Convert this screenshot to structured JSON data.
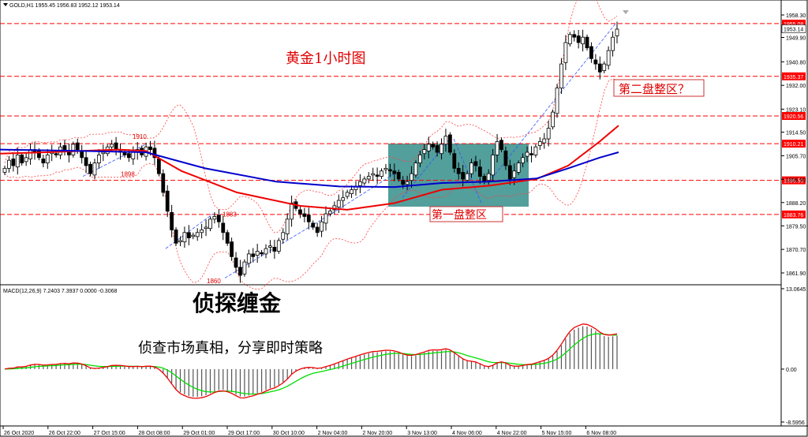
{
  "window": {
    "symbol_line": "GOLD,H1  1955.45 1956.83 1952.12 1953.14"
  },
  "overlay": {
    "title_cn": "黄金1小时图",
    "zone1_label": "第一盘整区",
    "zone2_label": "第二盘整区？",
    "brand_big": "侦探缠金",
    "brand_sub": "侦查市场真相，分享即时策略"
  },
  "chart_data": [
    {
      "type": "candlestick",
      "symbol": "GOLD",
      "timeframe": "H1",
      "ohlc_last": {
        "open": 1955.45,
        "high": 1956.83,
        "low": 1952.12,
        "close": 1953.14
      },
      "ylim": [
        1858,
        1963
      ],
      "yticks": [
        1958.3,
        1949.9,
        1940.8,
        1932.0,
        1923.1,
        1914.5,
        1905.7,
        1896.9,
        1888.2,
        1879.5,
        1870.7,
        1861.9
      ],
      "xticks": [
        "26 Oct 2020",
        "26 Oct 22:00",
        "27 Oct 15:00",
        "28 Oct 08:00",
        "29 Oct 01:00",
        "29 Oct 17:00",
        "30 Oct 10:00",
        "2 Nov 04:00",
        "2 Nov 20:00",
        "3 Nov 13:00",
        "4 Nov 06:00",
        "4 Nov 22:00",
        "5 Nov 15:00",
        "6 Nov 08:00"
      ],
      "level_lines": [
        1955.08,
        1935.37,
        1920.56,
        1910.21,
        1896.5,
        1883.76
      ],
      "level_labels": [
        "1955.08",
        "1935.37",
        "1920.56",
        "1910.21",
        "1896.50",
        "1883.76"
      ],
      "current_price_label": "1953.14",
      "annotations": [
        "1910",
        "1898",
        "1883",
        "1860"
      ],
      "closes": [
        1901,
        1904,
        1902,
        1906,
        1903,
        1905,
        1908,
        1907,
        1905,
        1903,
        1906,
        1907,
        1906,
        1909,
        1908,
        1906,
        1910,
        1908,
        1905,
        1902,
        1899,
        1903,
        1906,
        1907,
        1909,
        1910,
        1908,
        1907,
        1906,
        1905,
        1907,
        1908,
        1906,
        1909,
        1908,
        1905,
        1899,
        1892,
        1885,
        1878,
        1873,
        1874,
        1877,
        1875,
        1876,
        1877,
        1878,
        1879,
        1882,
        1883,
        1881,
        1877,
        1873,
        1868,
        1864,
        1861,
        1866,
        1869,
        1868,
        1870,
        1869,
        1871,
        1872,
        1870,
        1874,
        1877,
        1882,
        1888,
        1886,
        1884,
        1883,
        1881,
        1879,
        1877,
        1881,
        1884,
        1885,
        1887,
        1889,
        1890,
        1892,
        1893,
        1894,
        1896,
        1897,
        1898,
        1899,
        1898,
        1900,
        1901,
        1900,
        1899,
        1897,
        1895,
        1896,
        1899,
        1903,
        1906,
        1908,
        1910,
        1909,
        1907,
        1910,
        1913,
        1907,
        1901,
        1899,
        1897,
        1899,
        1903,
        1902,
        1898,
        1896,
        1899,
        1906,
        1911,
        1908,
        1902,
        1897,
        1900,
        1903,
        1905,
        1907,
        1906,
        1909,
        1911,
        1912,
        1916,
        1922,
        1931,
        1940,
        1948,
        1951,
        1950,
        1948,
        1950,
        1946,
        1942,
        1940,
        1937,
        1940,
        1945,
        1950,
        1953
      ],
      "ma_fast": [
        1910,
        1896.5,
        1883
      ],
      "ma_slow": [
        1907,
        1896.5,
        1906
      ]
    },
    {
      "type": "macd",
      "label": "MACD(12,26,9) 7.2403 7.3937 0.0000 -0.3068",
      "ylim": [
        -8.5956,
        13.0645
      ],
      "yticks": [
        "13.0645",
        "0.00",
        "-8.5956"
      ]
    }
  ],
  "colors": {
    "candle_up": "#000000",
    "candle_down": "#000000",
    "level_line": "#ff0000",
    "ma_red": "#ee0000",
    "ma_blue": "#0000cc",
    "bollinger": "#ff4040",
    "trendline": "#3355ff",
    "zone_fill": "#2d8a86",
    "macd_hist": "#555555",
    "macd_line": "#00dd00",
    "signal_line": "#ee0000",
    "title_text": "#e00000"
  }
}
